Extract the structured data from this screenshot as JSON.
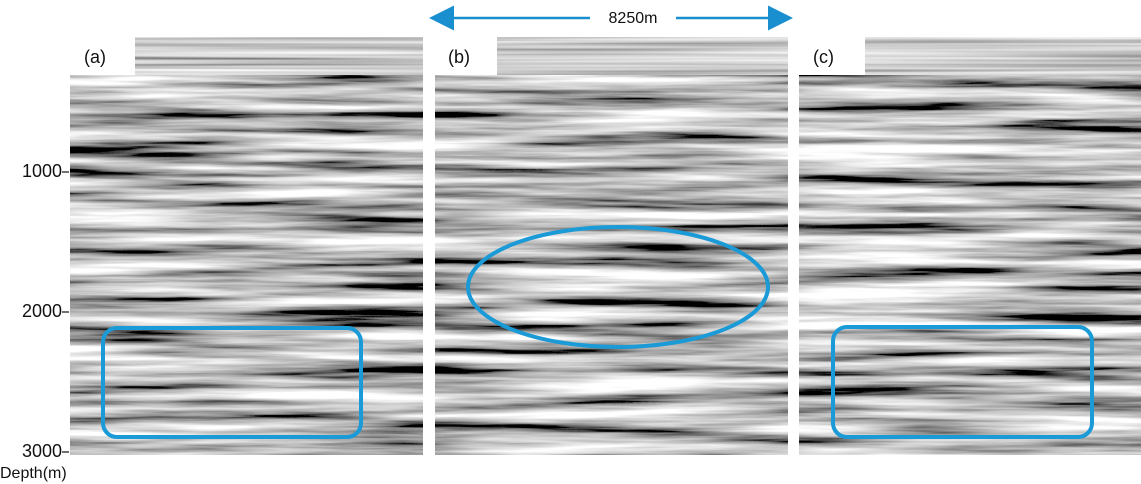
{
  "panels": [
    {
      "label": "(a)"
    },
    {
      "label": "(b)"
    },
    {
      "label": "(c)"
    }
  ],
  "scale_bar": {
    "label": "8250m"
  },
  "depth_axis": {
    "label": "Depth(m)",
    "ticks": [
      1000,
      2000,
      3000
    ]
  }
}
